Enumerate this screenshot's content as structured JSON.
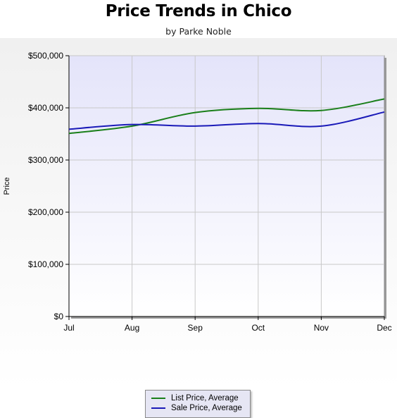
{
  "header": {
    "title": "Price Trends in Chico",
    "subtitle": "by Parke Noble"
  },
  "chart_data": {
    "type": "line",
    "categories": [
      "Jul",
      "Aug",
      "Sep",
      "Oct",
      "Nov",
      "Dec"
    ],
    "ylabel": "Price",
    "ylim": [
      0,
      500000
    ],
    "yticks": [
      0,
      100000,
      200000,
      300000,
      400000,
      500000
    ],
    "ytick_labels": [
      "$0",
      "$100,000",
      "$200,000",
      "$300,000",
      "$400,000",
      "$500,000"
    ],
    "grid": true,
    "legend_position": "bottom-center",
    "series": [
      {
        "name": "List Price, Average",
        "color": "#1a7f1a",
        "values": [
          351000,
          365000,
          391000,
          399000,
          395000,
          417000
        ]
      },
      {
        "name": "Sale Price, Average",
        "color": "#1a1ab8",
        "values": [
          359000,
          368000,
          365000,
          370000,
          365000,
          392000
        ]
      }
    ]
  }
}
